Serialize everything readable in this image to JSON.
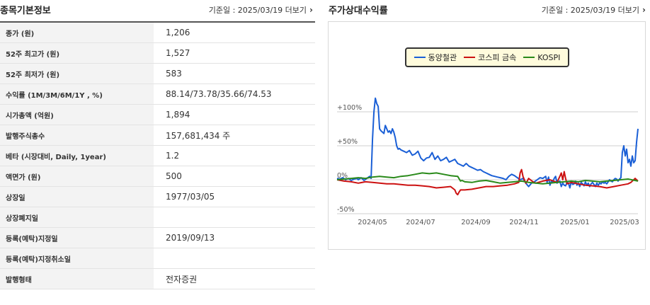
{
  "left_panel": {
    "title": "종목기본정보",
    "date_label": "기준일 : 2025/03/19 더보기",
    "rows": [
      {
        "label": "종가 (원)",
        "value": "1,206"
      },
      {
        "label": "52주 최고가 (원)",
        "value": "1,527"
      },
      {
        "label": "52주 최저가 (원)",
        "value": "583"
      },
      {
        "label": "수익률 (1M/3M/6M/1Y , %)",
        "value": "88.14/73.78/35.66/74.53"
      },
      {
        "label": "시가총액 (억원)",
        "value": "1,894"
      },
      {
        "label": "발행주식총수",
        "value": "157,681,434 주"
      },
      {
        "label": "베타 (시장대비, Daily, 1year)",
        "value": "1.2"
      },
      {
        "label": "액면가 (원)",
        "value": "500"
      },
      {
        "label": "상장일",
        "value": "1977/03/05"
      },
      {
        "label": "상장폐지일",
        "value": ""
      },
      {
        "label": "등록(예탁)지정일",
        "value": "2019/09/13"
      },
      {
        "label": "등록(예탁)지정취소일",
        "value": ""
      },
      {
        "label": "발행형태",
        "value": "전자증권"
      }
    ]
  },
  "right_panel": {
    "title": "주가상대수익률",
    "date_label": "기준일 : 2025/03/19 더보기"
  },
  "chart_data": {
    "type": "line",
    "x_tick_labels": [
      "2024/05",
      "2024/07",
      "2024/09",
      "2024/11",
      "2025/01",
      "2025/03"
    ],
    "y_tick_labels": [
      "+100%",
      "+50%",
      "0%",
      "-50%"
    ],
    "ylim": [
      -50,
      120
    ],
    "legend_position": "top-center",
    "grid": true,
    "series": [
      {
        "name": "동양철관",
        "color": "#1a5fd6",
        "x": [
          0,
          4,
          8,
          12,
          16,
          20,
          24,
          28,
          30,
          34,
          38,
          42,
          46,
          48,
          50,
          52,
          54,
          56,
          58,
          60,
          62,
          64,
          66,
          68,
          70,
          72,
          74,
          76,
          78,
          80,
          82,
          84,
          86,
          88,
          90,
          94,
          98,
          102,
          106,
          110,
          114,
          118,
          122,
          126,
          130,
          134,
          138,
          142,
          146,
          150,
          154,
          158,
          162,
          166,
          170,
          174,
          178,
          182,
          186,
          190,
          194,
          198,
          202,
          206,
          210,
          214,
          218,
          222,
          226,
          230,
          234,
          238,
          242,
          246,
          250,
          254,
          258,
          262,
          266,
          270,
          274,
          278,
          282,
          286,
          290,
          294,
          296,
          298,
          300,
          302,
          304,
          306,
          308,
          310,
          312,
          314,
          316,
          318,
          320,
          322,
          324,
          326,
          328,
          330,
          332,
          334,
          336,
          338,
          340,
          342,
          344,
          346,
          348,
          350,
          352,
          354,
          356,
          358,
          360,
          362,
          364,
          366,
          368,
          370,
          372,
          374,
          376,
          378,
          380,
          382,
          384,
          386,
          388,
          390,
          392,
          394,
          396,
          398,
          400,
          402,
          404,
          406,
          408,
          410,
          412,
          414,
          416,
          418,
          420,
          422,
          424
        ],
        "y": [
          2,
          1,
          3,
          0,
          2,
          -1,
          1,
          2,
          0,
          3,
          -1,
          2,
          5,
          2,
          60,
          100,
          120,
          112,
          108,
          75,
          72,
          70,
          68,
          80,
          75,
          70,
          72,
          68,
          75,
          70,
          62,
          50,
          45,
          46,
          44,
          42,
          40,
          43,
          36,
          38,
          42,
          32,
          28,
          32,
          33,
          40,
          30,
          35,
          28,
          30,
          33,
          26,
          28,
          30,
          24,
          22,
          20,
          24,
          20,
          18,
          16,
          14,
          15,
          12,
          10,
          8,
          6,
          5,
          4,
          3,
          2,
          0,
          5,
          8,
          6,
          3,
          0,
          2,
          -5,
          -10,
          -5,
          -3,
          0,
          3,
          2,
          5,
          -4,
          4,
          -8,
          -2,
          -3,
          2,
          5,
          -5,
          -3,
          -2,
          -10,
          -5,
          -8,
          -9,
          -4,
          -5,
          -12,
          -3,
          -7,
          -6,
          -2,
          -8,
          -5,
          -10,
          -4,
          -6,
          -9,
          -3,
          -8,
          -5,
          -10,
          -6,
          -4,
          -7,
          -10,
          -5,
          -8,
          -5,
          -6,
          -3,
          -5,
          -4,
          -6,
          -3,
          0,
          -2,
          -3,
          0,
          2,
          1,
          -2,
          1,
          3,
          40,
          50,
          35,
          45,
          25,
          30,
          20,
          35,
          25,
          28,
          55,
          75
        ]
      },
      {
        "name": "코스피 금속",
        "color": "#cc1111",
        "x": [
          0,
          10,
          20,
          30,
          40,
          50,
          60,
          70,
          80,
          90,
          100,
          110,
          120,
          130,
          140,
          150,
          160,
          166,
          168,
          170,
          172,
          174,
          180,
          190,
          200,
          210,
          220,
          230,
          240,
          250,
          256,
          258,
          260,
          262,
          264,
          266,
          268,
          270,
          276,
          280,
          290,
          300,
          310,
          314,
          316,
          318,
          320,
          322,
          324,
          330,
          340,
          350,
          360,
          370,
          380,
          390,
          400,
          410,
          414,
          416,
          418,
          420,
          422,
          424
        ],
        "y": [
          0,
          -2,
          -3,
          -5,
          -3,
          -4,
          -5,
          -6,
          -6,
          -7,
          -8,
          -8,
          -9,
          -10,
          -12,
          -11,
          -10,
          -15,
          -20,
          -22,
          -18,
          -15,
          -15,
          -14,
          -12,
          -10,
          -10,
          -9,
          -8,
          -6,
          -4,
          10,
          15,
          5,
          0,
          -5,
          -2,
          2,
          -3,
          -5,
          -2,
          0,
          -4,
          5,
          10,
          0,
          12,
          2,
          -6,
          -4,
          -6,
          -8,
          -9,
          -10,
          -12,
          -10,
          -8,
          -6,
          -4,
          -2,
          0,
          2,
          0,
          -2
        ]
      },
      {
        "name": "KOSPI",
        "color": "#2a8a1a",
        "x": [
          0,
          10,
          20,
          30,
          40,
          50,
          60,
          70,
          80,
          90,
          100,
          110,
          120,
          130,
          140,
          150,
          160,
          170,
          174,
          176,
          180,
          190,
          200,
          210,
          220,
          230,
          240,
          250,
          260,
          270,
          280,
          290,
          300,
          310,
          320,
          330,
          340,
          350,
          360,
          370,
          380,
          390,
          400,
          410,
          424
        ],
        "y": [
          0,
          1,
          2,
          3,
          2,
          4,
          5,
          4,
          3,
          5,
          6,
          8,
          10,
          9,
          10,
          8,
          6,
          5,
          -2,
          -1,
          -3,
          -4,
          -2,
          -1,
          -3,
          -5,
          -4,
          -3,
          -2,
          -4,
          -5,
          -6,
          -5,
          -4,
          -3,
          -2,
          -3,
          -1,
          -2,
          -3,
          -2,
          -1,
          0,
          1,
          -2
        ]
      }
    ]
  }
}
